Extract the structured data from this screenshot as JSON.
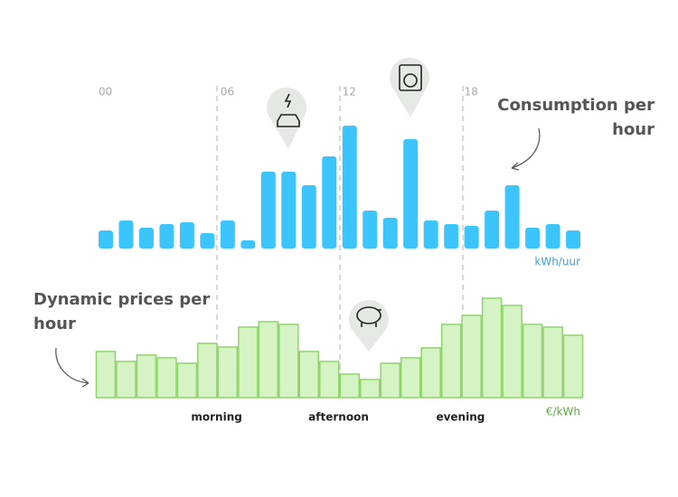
{
  "chart_data": [
    {
      "type": "bar",
      "title": "Consumption per hour",
      "unit": "kWh/uur",
      "color": "#3cc5fc",
      "categories": [
        "00",
        null,
        null,
        null,
        null,
        null,
        "06",
        null,
        null,
        null,
        null,
        null,
        "12",
        null,
        null,
        null,
        null,
        null,
        "18",
        null,
        null,
        null,
        null,
        null
      ],
      "values": [
        20,
        31,
        23,
        27,
        29,
        17,
        31,
        9,
        85,
        85,
        70,
        102,
        136,
        42,
        34,
        121,
        31,
        27,
        25,
        42,
        70,
        23,
        27,
        20
      ]
    },
    {
      "type": "bar",
      "title": "Dynamic prices per hour",
      "unit": "€/kWh",
      "color": "#d5f3c4",
      "edgecolor": "#8ed46a",
      "annotations": [
        "morning",
        "afternoon",
        "evening"
      ],
      "values": [
        51,
        40,
        47,
        44,
        38,
        60,
        56,
        78,
        84,
        81,
        51,
        40,
        26,
        20,
        38,
        44,
        55,
        81,
        91,
        110,
        102,
        81,
        78,
        69
      ]
    }
  ]
}
